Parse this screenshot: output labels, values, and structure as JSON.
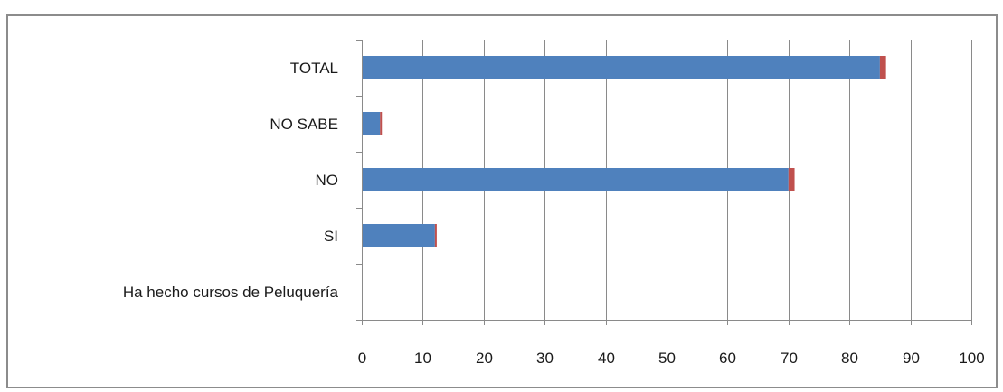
{
  "chart_data": {
    "type": "bar",
    "orientation": "horizontal",
    "categories": [
      "Ha hecho cursos de  Peluquería",
      "SI",
      "NO",
      "NO SABE",
      "TOTAL"
    ],
    "series": [
      {
        "values": [
          0,
          12,
          70,
          3,
          85
        ],
        "color": "#4f81bd"
      },
      {
        "values": [
          0,
          0.3,
          1,
          0.3,
          1
        ],
        "color": "#c0504d"
      }
    ],
    "xlim": [
      0,
      100
    ],
    "xticks": [
      0,
      10,
      20,
      30,
      40,
      50,
      60,
      70,
      80,
      90,
      100
    ],
    "grid": true,
    "stacked": true
  }
}
